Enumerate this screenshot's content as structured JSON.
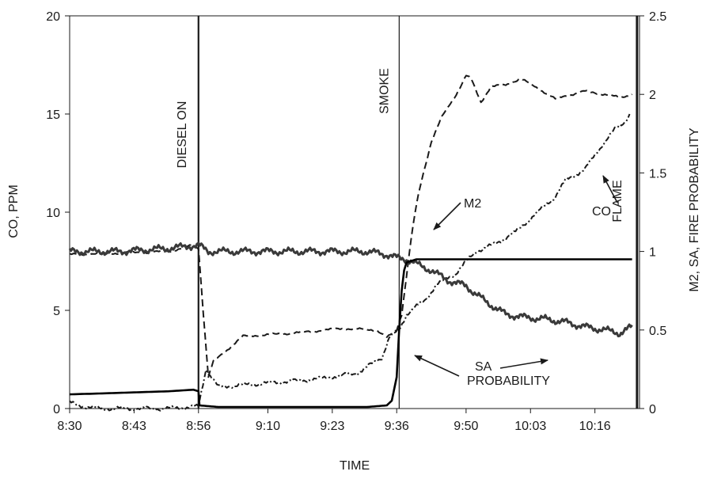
{
  "chart_data": {
    "type": "line",
    "xlabel": "TIME",
    "ylabel_left": "CO, PPM",
    "ylabel_right": "M2, SA, FIRE PROBABILITY",
    "x_tick_labels": [
      "8:30",
      "8:43",
      "8:56",
      "9:10",
      "9:23",
      "9:36",
      "9:50",
      "10:03",
      "10:16"
    ],
    "x_tick_minutes": [
      0,
      13,
      26,
      40,
      53,
      66,
      80,
      93,
      106
    ],
    "xlim_minutes": [
      0,
      115
    ],
    "ylim_left": [
      0,
      20
    ],
    "ylim_right": [
      0,
      2.5
    ],
    "y_ticks_left": [
      "0",
      "5",
      "10",
      "15",
      "20"
    ],
    "y_ticks_right": [
      "0",
      "0.5",
      "1",
      "1.5",
      "2",
      "2.5"
    ],
    "grid": false,
    "events": [
      {
        "label": "DIESEL ON",
        "minute": 26
      },
      {
        "label": "SMOKE",
        "minute": 66.5
      },
      {
        "label": "FLAME",
        "minute": 114.5
      }
    ],
    "series": [
      {
        "name": "CO",
        "axis": "left",
        "style": "dash-dot",
        "x": [
          0,
          3,
          6,
          10,
          20,
          26,
          27.5,
          30,
          40,
          50,
          58,
          63,
          64.5,
          66.5,
          68,
          72,
          74,
          78,
          79,
          82,
          86,
          90,
          94,
          98,
          100,
          104,
          108,
          110,
          112,
          113
        ],
        "values": [
          0.3,
          0.1,
          0.0,
          0.0,
          0.0,
          0.1,
          2.0,
          1.1,
          1.3,
          1.5,
          1.8,
          2.6,
          3.6,
          4.0,
          4.8,
          5.6,
          6.3,
          6.9,
          7.2,
          8.0,
          8.4,
          9.0,
          9.9,
          10.8,
          11.6,
          12.2,
          13.6,
          14.2,
          14.6,
          15.0
        ]
      },
      {
        "name": "M2",
        "axis": "right",
        "style": "dashed",
        "x": [
          0,
          10,
          20,
          25,
          26,
          27,
          28,
          29,
          35,
          45,
          55,
          62,
          64,
          66,
          67,
          68,
          69,
          70,
          71,
          73,
          75,
          78,
          80,
          81,
          83,
          85,
          88,
          91,
          95,
          98,
          100,
          104,
          108,
          111,
          113.5
        ],
        "values": [
          0.98,
          0.99,
          1.0,
          1.04,
          1.02,
          0.6,
          0.2,
          0.3,
          0.46,
          0.48,
          0.51,
          0.5,
          0.45,
          0.5,
          0.6,
          0.85,
          1.1,
          1.3,
          1.45,
          1.7,
          1.85,
          2.0,
          2.12,
          2.1,
          1.95,
          2.05,
          2.06,
          2.1,
          2.03,
          1.97,
          1.99,
          2.02,
          2.0,
          1.98,
          2.0
        ]
      },
      {
        "name": "SA",
        "axis": "right",
        "style": "thick-noisy",
        "x": [
          0,
          10,
          20,
          26,
          28,
          40,
          50,
          60,
          64,
          66,
          68,
          70,
          73,
          76,
          80,
          84,
          88,
          92,
          96,
          100,
          104,
          108,
          111,
          113.5
        ],
        "values": [
          1.0,
          1.0,
          1.02,
          1.04,
          1.0,
          1.0,
          1.0,
          1.0,
          0.98,
          0.96,
          0.95,
          0.92,
          0.88,
          0.82,
          0.78,
          0.68,
          0.6,
          0.58,
          0.57,
          0.55,
          0.52,
          0.5,
          0.48,
          0.52
        ]
      },
      {
        "name": "PROBABILITY",
        "axis": "right",
        "style": "solid",
        "x": [
          0,
          10,
          20,
          25,
          26,
          26.2,
          30,
          40,
          50,
          60,
          64,
          65,
          66,
          66.5,
          67,
          67.5,
          68,
          69,
          70,
          80,
          113.5
        ],
        "values": [
          0.09,
          0.1,
          0.11,
          0.12,
          0.11,
          0.02,
          0.01,
          0.01,
          0.01,
          0.01,
          0.02,
          0.05,
          0.2,
          0.5,
          0.75,
          0.88,
          0.93,
          0.94,
          0.95,
          0.95,
          0.95
        ]
      }
    ],
    "annotations": [
      {
        "label": "M2",
        "points_to_series": "M2"
      },
      {
        "label": "CO",
        "points_to_series": "CO"
      },
      {
        "label": "SA",
        "points_to_series": "SA"
      },
      {
        "label": "PROBABILITY",
        "points_to_series": "PROBABILITY"
      }
    ]
  }
}
